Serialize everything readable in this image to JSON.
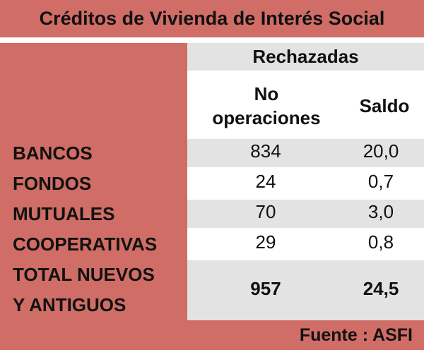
{
  "title": "Créditos de Vivienda de Interés Social",
  "group_header": "Rechazadas",
  "column_headers": [
    "No\noperaciones",
    "Saldo"
  ],
  "rows": [
    {
      "label": "BANCOS",
      "operaciones": "834",
      "saldo": "20,0"
    },
    {
      "label": "FONDOS",
      "operaciones": "24",
      "saldo": "0,7"
    },
    {
      "label": "MUTUALES",
      "operaciones": "70",
      "saldo": "3,0"
    },
    {
      "label": "COOPERATIVAS",
      "operaciones": "29",
      "saldo": "0,8"
    }
  ],
  "total": {
    "label_line1": "TOTAL NUEVOS",
    "label_line2": "Y ANTIGUOS",
    "operaciones": "957",
    "saldo": "24,5"
  },
  "source": "Fuente : ASFI",
  "colors": {
    "accent": "#cf6d66",
    "row_gray": "#e3e3e3"
  }
}
